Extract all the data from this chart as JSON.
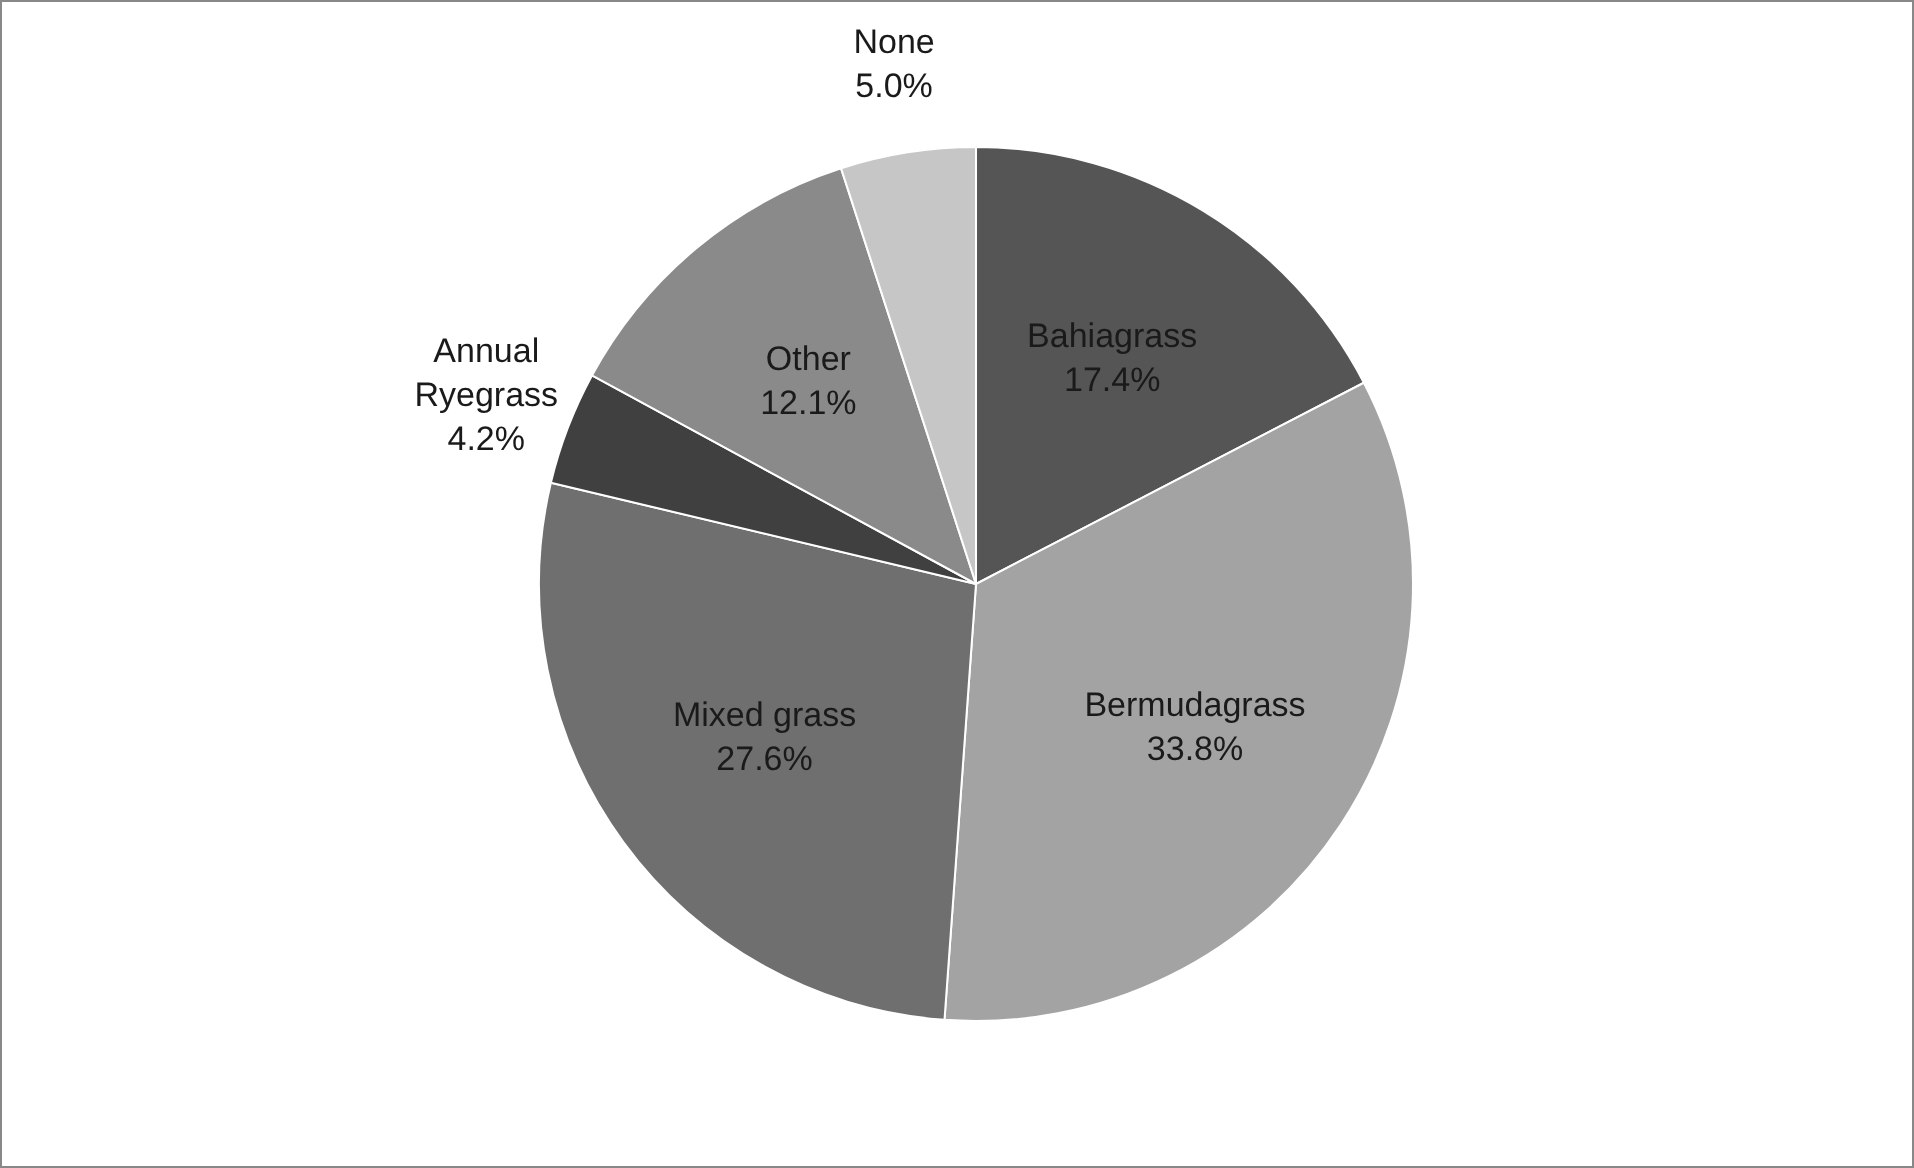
{
  "chart_data": {
    "type": "pie",
    "categories": [
      "Bahiagrass",
      "Bermudagrass",
      "Mixed grass",
      "Annual Ryegrass",
      "Other",
      "None"
    ],
    "values": [
      17.4,
      33.8,
      27.6,
      4.2,
      12.1,
      5.0
    ],
    "colors": [
      "#555555",
      "#a3a3a3",
      "#6f6f6f",
      "#404040",
      "#8a8a8a",
      "#c6c6c6"
    ],
    "value_labels": [
      "17.4%",
      "33.8%",
      "27.6%",
      "4.2%",
      "12.1%",
      "5.0%"
    ],
    "legend": false
  }
}
